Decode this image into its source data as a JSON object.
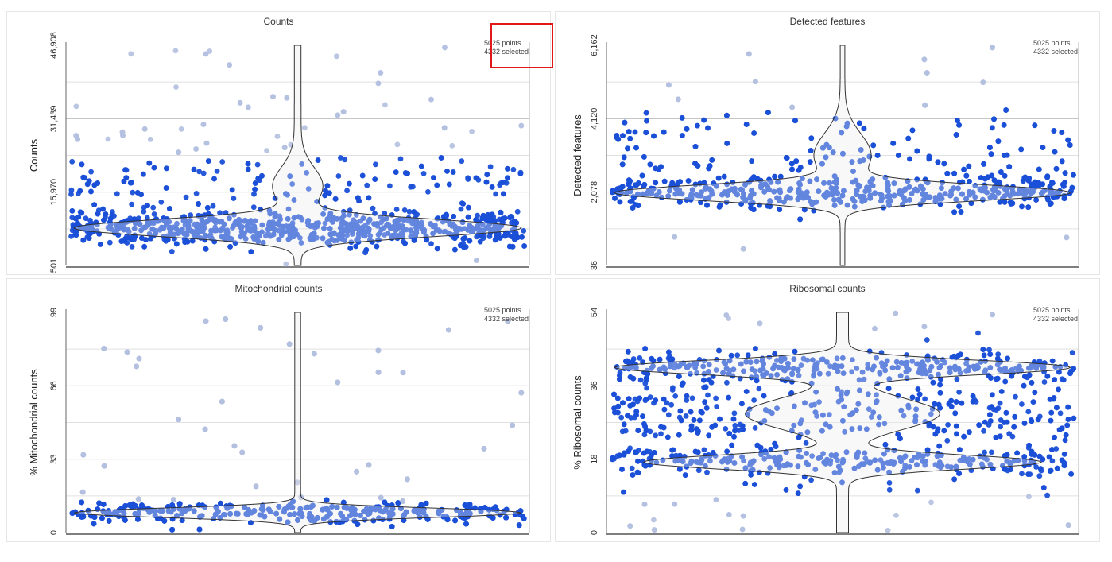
{
  "colors": {
    "selected": "#1a4fd8",
    "unselected": "#b4c0e0",
    "violin_fill": "#ececec",
    "violin_stroke": "#333333",
    "grid_major": "#bdbdbd",
    "grid_minor": "#e0e0e0",
    "highlight": "#e01818"
  },
  "chart_data": [
    {
      "type": "scatter",
      "subtype": "violin",
      "title": "Counts",
      "ylabel": "Counts",
      "ylim": [
        501,
        46908
      ],
      "yticks": [
        "501",
        "15,970",
        "31,439",
        "46,908"
      ],
      "points_label": "5025 points",
      "selected_label": "4332 selected",
      "total_points": 5025,
      "selected_points": 4332,
      "selection_range": [
        1500,
        24000
      ],
      "peak": 8700
    },
    {
      "type": "scatter",
      "subtype": "violin",
      "title": "Detected features",
      "ylabel": "Detected features",
      "ylim": [
        36,
        6162
      ],
      "yticks": [
        "36",
        "2,078",
        "4,120",
        "6,162"
      ],
      "points_label": "5025 points",
      "selected_label": "4332 selected",
      "total_points": 5025,
      "selected_points": 4332,
      "selection_range": [
        1000,
        4400
      ],
      "peak": 2100
    },
    {
      "type": "scatter",
      "subtype": "violin",
      "title": "Mitochondrial counts",
      "ylabel": "% Mitochondrial counts",
      "ylim": [
        0,
        99
      ],
      "yticks": [
        "0",
        "33",
        "66",
        "99"
      ],
      "points_label": "5025 points",
      "selected_label": "4332 selected",
      "total_points": 5025,
      "selected_points": 4332,
      "selection_range": [
        0,
        15
      ],
      "peak": 8
    },
    {
      "type": "scatter",
      "subtype": "violin",
      "title": "Ribosomal counts",
      "ylabel": "% Ribosomal counts",
      "ylim": [
        0,
        54
      ],
      "yticks": [
        "0",
        "18",
        "36",
        "54"
      ],
      "points_label": "5025 points",
      "selected_label": "4332 selected",
      "total_points": 5025,
      "selected_points": 4332,
      "selection_range": [
        9,
        50
      ],
      "peak": 40
    }
  ]
}
